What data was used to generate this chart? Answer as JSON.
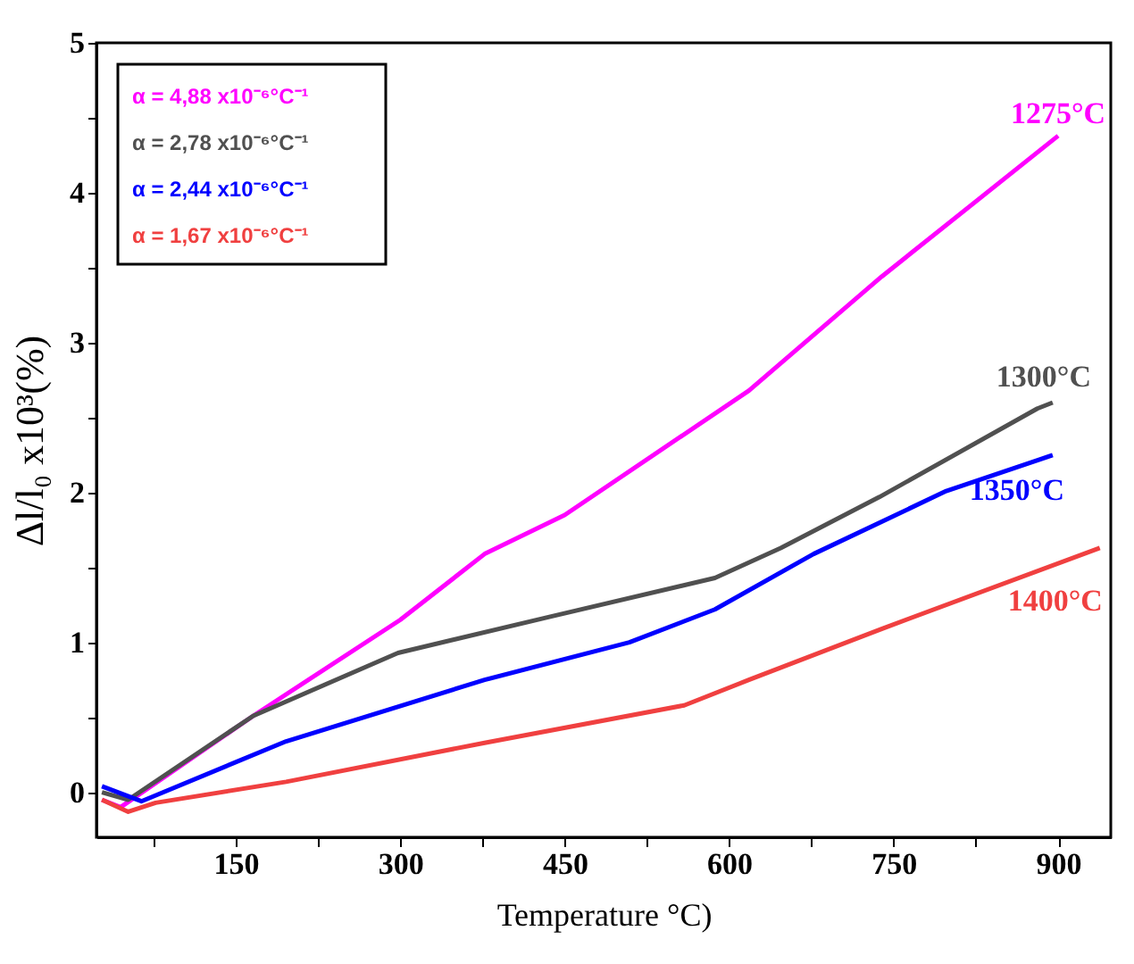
{
  "chart_data": {
    "type": "line",
    "xlabel": "Temperature °C)",
    "ylabel": "Δl/l₀ x10³(%)",
    "xlim": [
      23,
      948
    ],
    "ylim": [
      -0.3,
      5
    ],
    "xticks": [
      {
        "value": 75,
        "label": null
      },
      150,
      {
        "value": 225,
        "label": null
      },
      300,
      {
        "value": 375,
        "label": null
      },
      450,
      {
        "value": 525,
        "label": null
      },
      600,
      {
        "value": 675,
        "label": null
      },
      750,
      {
        "value": 825,
        "label": null
      },
      900
    ],
    "yticks": [
      0,
      {
        "value": 0.5,
        "label": null
      },
      1,
      {
        "value": 1.5,
        "label": null
      },
      2,
      {
        "value": 2.5,
        "label": null
      },
      3,
      {
        "value": 3.5,
        "label": null
      },
      4,
      {
        "value": 4.5,
        "label": null
      },
      5
    ],
    "grid": false,
    "marker": "none",
    "line_style": "solid",
    "series": [
      {
        "name": "1275°C",
        "color": "#ff00ff",
        "x": [
          28,
          45,
          166,
          300,
          377,
          450,
          618,
          739,
          900
        ],
        "values": [
          -0.05,
          -0.1,
          0.51,
          1.15,
          1.59,
          1.85,
          2.68,
          3.44,
          4.38
        ]
      },
      {
        "name": "1300°C",
        "color": "#505050",
        "x": [
          28,
          52,
          166,
          298,
          436,
          587,
          647,
          737,
          881,
          895
        ],
        "values": [
          0.0,
          -0.05,
          0.51,
          0.93,
          1.17,
          1.43,
          1.63,
          1.97,
          2.56,
          2.6
        ]
      },
      {
        "name": "1350°C",
        "color": "#0000ff",
        "x": [
          28,
          64,
          196,
          377,
          509,
          587,
          677,
          798,
          883,
          895
        ],
        "values": [
          0.04,
          -0.06,
          0.34,
          0.75,
          1.0,
          1.22,
          1.59,
          2.01,
          2.22,
          2.25
        ]
      },
      {
        "name": "1400°C",
        "color": "#f04040",
        "x": [
          28,
          52,
          77,
          196,
          377,
          559,
          618,
          739,
          938
        ],
        "values": [
          -0.05,
          -0.13,
          -0.07,
          0.07,
          0.33,
          0.58,
          0.75,
          1.09,
          1.63
        ]
      }
    ],
    "annotations": [
      "α = 4,88 x10⁻⁶°C⁻¹",
      "α = 2,78 x10⁻⁶°C⁻¹",
      "α = 2,44 x10⁻⁶°C⁻¹",
      "α = 1,67 x10⁻⁶°C⁻¹"
    ]
  }
}
